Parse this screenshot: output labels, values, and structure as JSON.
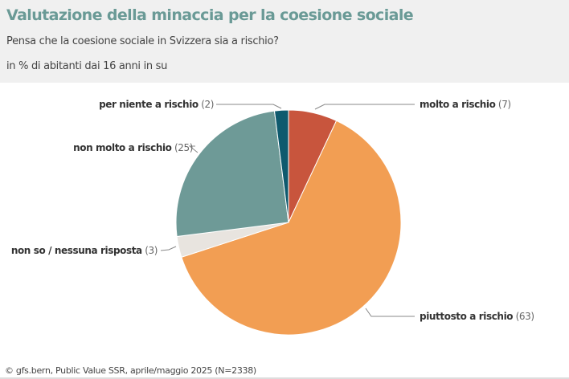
{
  "header": {
    "title": "Valutazione della minaccia per la coesione sociale",
    "subtitle": "Pensa che la coesione sociale in Svizzera sia a rischio?",
    "unit": "in % di abitanti dai 16 anni in su"
  },
  "chart_data": {
    "type": "pie",
    "title": "Valutazione della minaccia per la coesione sociale",
    "categories": [
      "molto a rischio",
      "piuttosto a rischio",
      "non so / nessuna risposta",
      "non molto a rischio",
      "per niente a rischio"
    ],
    "values": [
      7,
      63,
      3,
      25,
      2
    ],
    "value_labels": [
      "(7)",
      "(63)",
      "(3)",
      "(25)",
      "(2)"
    ],
    "colors": [
      "#c8553d",
      "#f29e53",
      "#e8e4df",
      "#6e9a97",
      "#0e5a6e"
    ],
    "start": "top, clockwise"
  },
  "footer": {
    "source": "© gfs.bern, Public Value SSR, aprile/maggio 2025 (N=2338)"
  }
}
